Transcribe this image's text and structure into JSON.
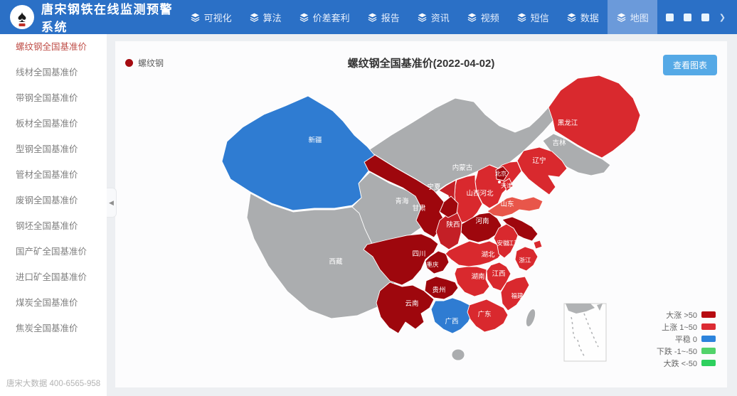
{
  "navbar": {
    "brand": "唐宋钢铁在线监测预警系统",
    "logo_icon": "spade-logo-icon",
    "item_icon": "layers-icon",
    "items": [
      {
        "key": "visualization",
        "label": "可视化",
        "active": false
      },
      {
        "key": "algorithm",
        "label": "算法",
        "active": false
      },
      {
        "key": "arbitrage",
        "label": "价差套利",
        "active": false
      },
      {
        "key": "report",
        "label": "报告",
        "active": false
      },
      {
        "key": "news",
        "label": "资讯",
        "active": false
      },
      {
        "key": "video",
        "label": "视频",
        "active": false
      },
      {
        "key": "sms",
        "label": "短信",
        "active": false
      },
      {
        "key": "data",
        "label": "数据",
        "active": false
      },
      {
        "key": "map",
        "label": "地图",
        "active": true
      }
    ],
    "right_icons": [
      "app-tile-icon",
      "app-tile-icon",
      "app-tile-icon",
      "chevron-right-icon"
    ]
  },
  "sidebar": {
    "active_index": 0,
    "active_color": "#c0504a",
    "items": [
      {
        "key": "rebar",
        "label": "螺纹钢全国基准价"
      },
      {
        "key": "wire-rod",
        "label": "线材全国基准价"
      },
      {
        "key": "strip-steel",
        "label": "带钢全国基准价"
      },
      {
        "key": "plate",
        "label": "板材全国基准价"
      },
      {
        "key": "section-steel",
        "label": "型钢全国基准价"
      },
      {
        "key": "pipe",
        "label": "管材全国基准价"
      },
      {
        "key": "scrap",
        "label": "废钢全国基准价"
      },
      {
        "key": "billet",
        "label": "钢坯全国基准价"
      },
      {
        "key": "domestic-ore",
        "label": "国产矿全国基准价"
      },
      {
        "key": "imported-ore",
        "label": "进口矿全国基准价"
      },
      {
        "key": "coal",
        "label": "煤炭全国基准价"
      },
      {
        "key": "coke",
        "label": "焦炭全国基准价"
      }
    ],
    "footer": "唐宋大数据 400-6565-958"
  },
  "main": {
    "series_legend": {
      "label": "螺纹钢",
      "color": "#a50b11"
    },
    "title": "螺纹钢全国基准价(2022-04-02)",
    "view_chart_button": "查看图表",
    "value_legend": [
      {
        "key": "big-rise",
        "label": "大涨 >50",
        "color": "#b70b11"
      },
      {
        "key": "rise",
        "label": "上涨 1~50",
        "color": "#dc2b33"
      },
      {
        "key": "flat",
        "label": "平稳 0",
        "color": "#2c83dc"
      },
      {
        "key": "fall",
        "label": "下跌 -1~-50",
        "color": "#52d36a"
      },
      {
        "key": "big-fall",
        "label": "大跌 <-50",
        "color": "#2ed05e"
      }
    ]
  },
  "chart_data": {
    "type": "heatmap",
    "subtype": "china-choropleth-map",
    "title": "螺纹钢全国基准价(2022-04-02)",
    "series_name": "螺纹钢",
    "date": "2022-04-02",
    "palette": {
      "big_rise": "#9e070d",
      "rise_dark": "#c41f26",
      "rise": "#d9292e",
      "rise_light": "#e8564a",
      "flat": "#2f7cd2",
      "none": "#abadaf"
    },
    "provinces": [
      {
        "key": "inner_mongolia",
        "name": "内蒙古",
        "category": "none"
      },
      {
        "key": "tibet",
        "name": "西藏",
        "category": "none"
      },
      {
        "key": "qinghai",
        "name": "青海",
        "category": "none"
      },
      {
        "key": "jilin",
        "name": "吉林",
        "category": "none"
      },
      {
        "key": "taiwan",
        "name": "",
        "category": "none"
      },
      {
        "key": "hainan",
        "name": "",
        "category": "none"
      },
      {
        "key": "xinjiang",
        "name": "新疆",
        "category": "flat"
      },
      {
        "key": "gansu",
        "name": "甘肃",
        "category": "big_rise"
      },
      {
        "key": "ningxia",
        "name": "宁夏",
        "category": "big_rise"
      },
      {
        "key": "heilongjiang",
        "name": "黑龙江",
        "category": "rise"
      },
      {
        "key": "liaoning",
        "name": "辽宁",
        "category": "rise"
      },
      {
        "key": "hebei",
        "name": "河北",
        "category": "rise"
      },
      {
        "key": "shanxi",
        "name": "山西",
        "category": "rise"
      },
      {
        "key": "shandong",
        "name": "山东",
        "category": "rise_light"
      },
      {
        "key": "henan",
        "name": "河南",
        "category": "big_rise"
      },
      {
        "key": "shaanxi",
        "name": "陕西",
        "category": "rise_dark"
      },
      {
        "key": "sichuan",
        "name": "四川",
        "category": "big_rise"
      },
      {
        "key": "chongqing",
        "name": "重庆",
        "category": "big_rise"
      },
      {
        "key": "hubei",
        "name": "湖北",
        "category": "rise"
      },
      {
        "key": "anhui",
        "name": "安徽",
        "category": "rise"
      },
      {
        "key": "jiangsu",
        "name": "江苏",
        "category": "big_rise"
      },
      {
        "key": "shanghai",
        "name": "",
        "category": "rise"
      },
      {
        "key": "zhejiang",
        "name": "浙江",
        "category": "rise"
      },
      {
        "key": "jiangxi",
        "name": "江西",
        "category": "rise"
      },
      {
        "key": "hunan",
        "name": "湖南",
        "category": "rise"
      },
      {
        "key": "guizhou",
        "name": "贵州",
        "category": "big_rise"
      },
      {
        "key": "yunnan",
        "name": "云南",
        "category": "big_rise"
      },
      {
        "key": "guangxi",
        "name": "广西",
        "category": "flat"
      },
      {
        "key": "guangdong",
        "name": "广东",
        "category": "rise"
      },
      {
        "key": "fujian",
        "name": "福建",
        "category": "rise"
      },
      {
        "key": "beijing",
        "name": "北京",
        "category": "big_rise"
      },
      {
        "key": "tianjin",
        "name": "天津",
        "category": "rise"
      }
    ]
  }
}
